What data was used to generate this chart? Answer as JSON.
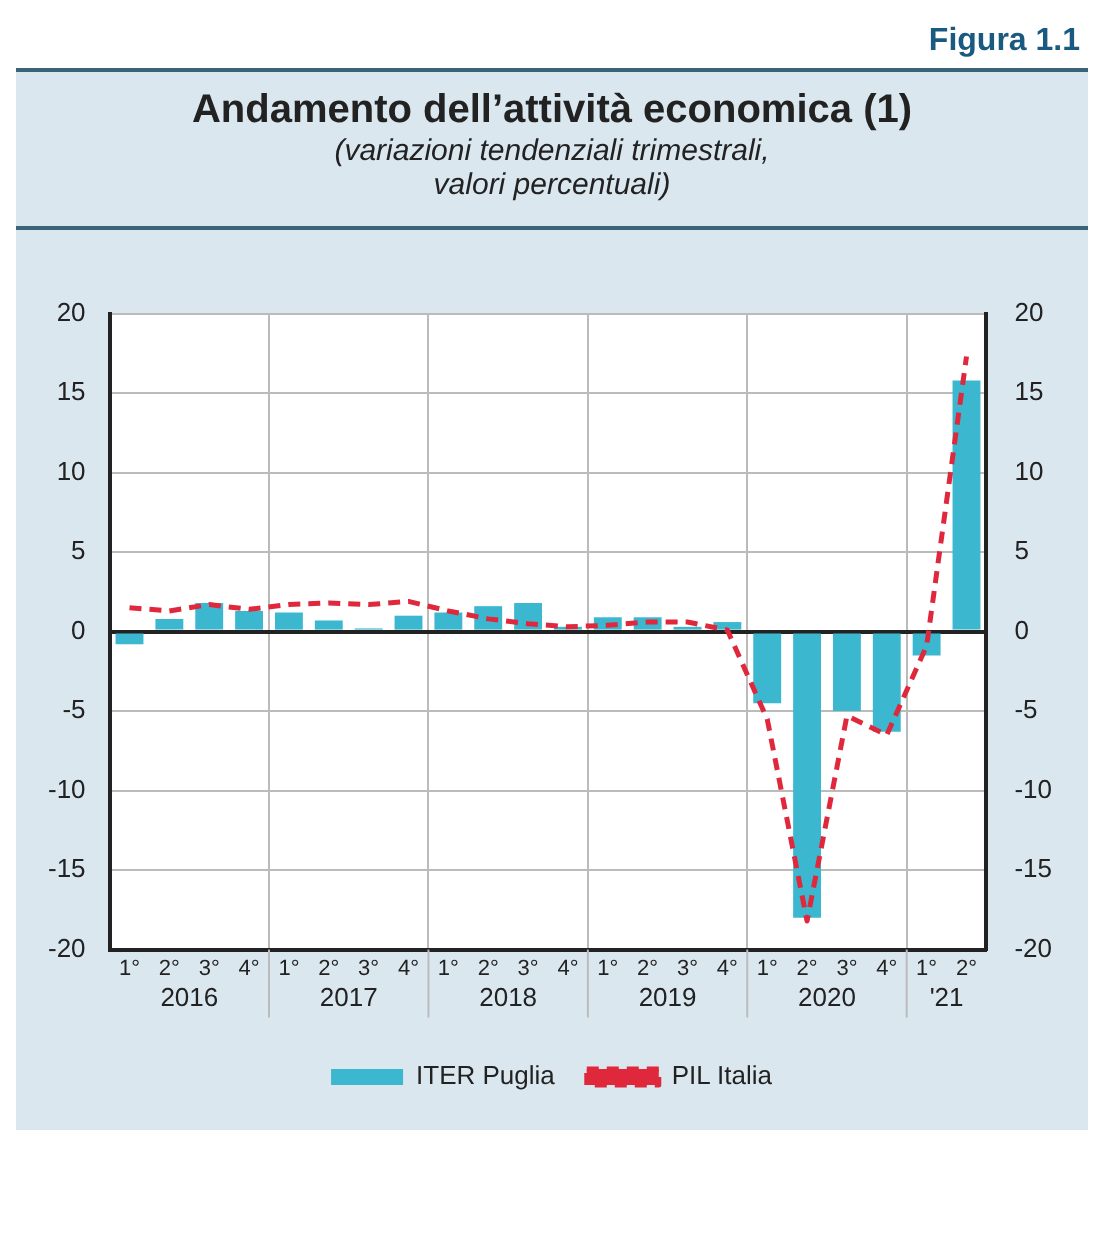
{
  "chart_data": {
    "type": "bar",
    "title": "Andamento dell’attività economica (1)",
    "subtitle": "(variazioni tendenziali trimestrali,\nvalori percentuali)",
    "annotations": [
      "Figura 1.1",
      "2016",
      "2017",
      "2018",
      "2019",
      "2020",
      "'21"
    ],
    "categories": [
      "1°",
      "2°",
      "3°",
      "4°",
      "1°",
      "2°",
      "3°",
      "4°",
      "1°",
      "2°",
      "3°",
      "4°",
      "1°",
      "2°",
      "3°",
      "4°",
      "1°",
      "2°",
      "3°",
      "4°",
      "1°",
      "2°"
    ],
    "series": [
      {
        "name": "ITER Puglia",
        "color": "#3bb8d0",
        "values": [
          -0.8,
          0.8,
          1.8,
          1.3,
          1.2,
          0.7,
          0.2,
          1.0,
          1.2,
          1.6,
          1.8,
          0.3,
          0.9,
          0.9,
          0.3,
          0.6,
          -4.5,
          -18,
          -5,
          -6.3,
          -1.5,
          15.8
        ]
      },
      {
        "name": "PIL Italia",
        "type": "line",
        "color": "#e0283c",
        "line_style": "dashed",
        "marker": "none",
        "values": [
          1.5,
          1.3,
          1.7,
          1.4,
          1.7,
          1.8,
          1.7,
          1.9,
          1.3,
          0.8,
          0.5,
          0.3,
          0.4,
          0.6,
          0.6,
          0.1,
          -5.5,
          -18.2,
          -5.3,
          -6.5,
          -0.9,
          17.3
        ]
      }
    ],
    "ylim": [
      -20,
      20
    ],
    "yticks": [
      -20,
      -15,
      -10,
      -5,
      0,
      5,
      10,
      15,
      20
    ],
    "y2lim": [
      -20,
      20
    ],
    "y2ticks": [
      -20,
      -15,
      -10,
      -5,
      0,
      5,
      10,
      15,
      20
    ],
    "grid": true,
    "legend": "bottom"
  }
}
